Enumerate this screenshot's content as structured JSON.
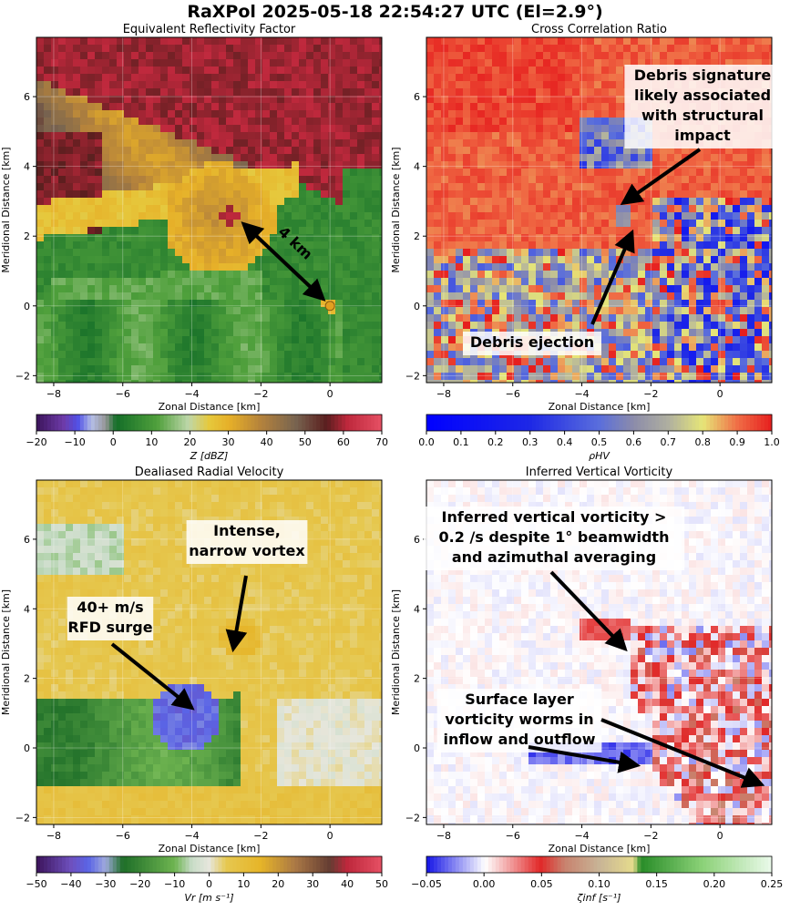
{
  "figure": {
    "suptitle": "RaXPol 2025-05-18 22:54:27 UTC (El=2.9°)"
  },
  "chart_data": [
    {
      "type": "heatmap",
      "title": "Equivalent Reflectivity Factor",
      "xlabel": "Zonal Distance [km]",
      "ylabel": "Meridional Distance [km]",
      "xlim": [
        -8.5,
        1.5
      ],
      "ylim": [
        -2.2,
        7.7
      ],
      "xticks": [
        -8,
        -6,
        -4,
        -2,
        0
      ],
      "yticks": [
        -2,
        0,
        2,
        4,
        6
      ],
      "colorbar": {
        "label": "Z [dBZ]",
        "range": [
          -20,
          70
        ],
        "ticks": [
          "−20",
          "−10",
          "0",
          "10",
          "20",
          "30",
          "40",
          "50",
          "60",
          "70"
        ]
      },
      "annotations": [
        {
          "text": "4 km",
          "from": [
            0,
            0
          ],
          "to": [
            -2.6,
            2.3
          ]
        }
      ]
    },
    {
      "type": "heatmap",
      "title": "Cross Correlation Ratio",
      "xlabel": "Zonal Distance [km]",
      "ylabel": "Meridional Distance [km]",
      "xlim": [
        -8.5,
        1.5
      ],
      "ylim": [
        -2.2,
        7.7
      ],
      "xticks": [
        -8,
        -6,
        -4,
        -2,
        0
      ],
      "yticks": [
        -2,
        0,
        2,
        4,
        6
      ],
      "colorbar": {
        "label": "ρHV",
        "range": [
          0.0,
          1.0
        ],
        "ticks": [
          "0.0",
          "0.1",
          "0.2",
          "0.3",
          "0.4",
          "0.5",
          "0.6",
          "0.7",
          "0.8",
          "0.9",
          "1.0"
        ]
      },
      "annotations": [
        {
          "text": "Debris signature likely associated with structural impact",
          "lines": [
            "Debris signature",
            "likely associated",
            "with structural",
            "impact"
          ],
          "to": [
            -2.8,
            2.9
          ]
        },
        {
          "text": "Debris ejection",
          "to": [
            -2.6,
            2.1
          ]
        }
      ]
    },
    {
      "type": "heatmap",
      "title": "Dealiased Radial Velocity",
      "xlabel": "Zonal Distance [km]",
      "ylabel": "Meridional Distance [km]",
      "xlim": [
        -8.5,
        1.5
      ],
      "ylim": [
        -2.2,
        7.7
      ],
      "xticks": [
        -8,
        -6,
        -4,
        -2,
        0
      ],
      "yticks": [
        -2,
        0,
        2,
        4,
        6
      ],
      "colorbar": {
        "label": "Vr [m s⁻¹]",
        "range": [
          -50,
          50
        ],
        "ticks": [
          "−50",
          "−40",
          "−30",
          "−20",
          "−10",
          "0",
          "10",
          "20",
          "30",
          "40",
          "50"
        ]
      },
      "annotations": [
        {
          "text": "Intense, narrow vortex",
          "lines": [
            "Intense,",
            "narrow vortex"
          ],
          "to": [
            -2.8,
            2.8
          ]
        },
        {
          "text": "40+ m/s RFD surge",
          "lines": [
            "40+ m/s",
            "RFD surge"
          ],
          "to": [
            -3.9,
            1.1
          ]
        }
      ]
    },
    {
      "type": "heatmap",
      "title": "Inferred Vertical Vorticity",
      "xlabel": "Zonal Distance [km]",
      "ylabel": "Meridional Distance [km]",
      "xlim": [
        -8.5,
        1.5
      ],
      "ylim": [
        -2.2,
        7.7
      ],
      "xticks": [
        -8,
        -6,
        -4,
        -2,
        0
      ],
      "yticks": [
        -2,
        0,
        2,
        4,
        6
      ],
      "colorbar": {
        "label": "ζinf [s⁻¹]",
        "range": [
          -0.05,
          0.25
        ],
        "ticks": [
          "−0.05",
          "0.00",
          "0.05",
          "0.10",
          "0.15",
          "0.20",
          "0.25"
        ]
      },
      "annotations": [
        {
          "text": "Inferred vertical vorticity > 0.2 /s despite 1° beamwidth and azimuthal averaging",
          "lines": [
            "Inferred vertical vorticity >",
            "0.2 /s despite 1° beamwidth",
            "and azimuthal averaging"
          ],
          "to": [
            -2.8,
            2.8
          ]
        },
        {
          "text": "Surface layer vorticity worms in inflow and outflow",
          "lines": [
            "Surface layer",
            "vorticity worms in",
            "inflow and outflow"
          ],
          "to": [
            -2.4,
            -0.5
          ]
        }
      ]
    }
  ]
}
